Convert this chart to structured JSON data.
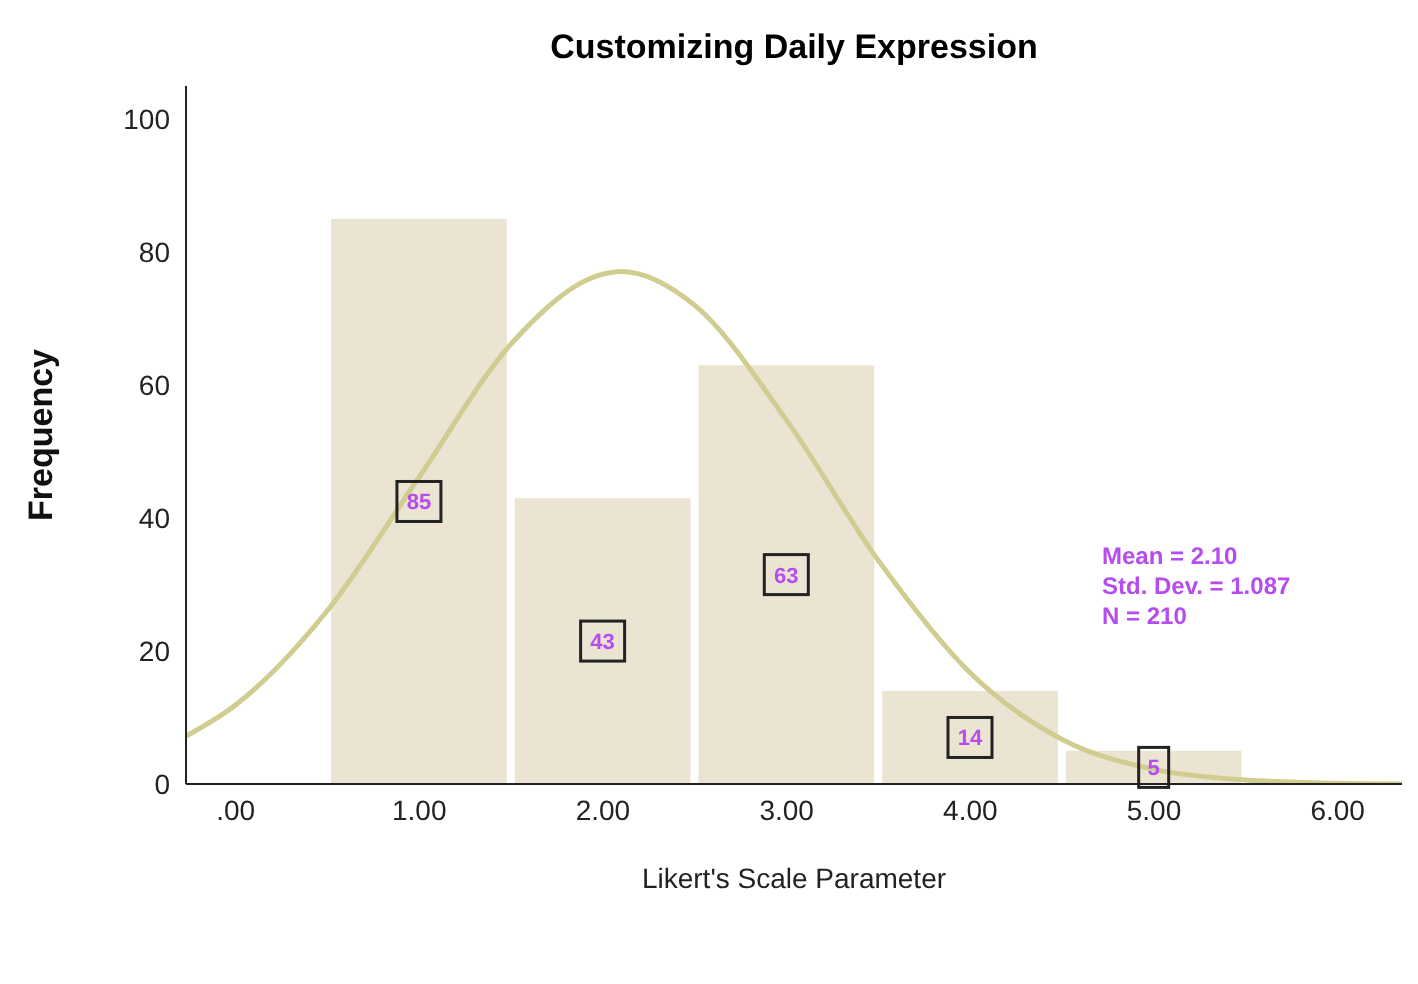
{
  "chart_data": {
    "type": "histogram",
    "title": "Customizing Daily Expression",
    "xlabel": "Likert's Scale Parameter",
    "ylabel": "Frequency",
    "series": [
      {
        "color": "#ebe4d2",
        "bins": [
          0.5,
          1.5,
          2.5,
          3.5,
          4.5,
          5.5
        ],
        "values": [
          85,
          43,
          63,
          14,
          5
        ],
        "value_labels": [
          "85",
          "43",
          "63",
          "14",
          "5"
        ]
      },
      {
        "type": "line",
        "color": "#d1cc8f",
        "x": [
          -0.27,
          0,
          0.5,
          1,
          1.5,
          2,
          2.1,
          2.5,
          3,
          3.5,
          4,
          4.5,
          5,
          5.5,
          6,
          6.35
        ],
        "values": [
          7.2,
          11.9,
          26.1,
          46.2,
          66.2,
          76.7,
          77.1,
          72.0,
          54.7,
          33.6,
          16.7,
          6.7,
          2.2,
          0.6,
          0.1,
          0
        ]
      }
    ],
    "annotations": [
      "Mean = 2.10",
      "Std. Dev. = 1.087",
      "N = 210"
    ],
    "xlim": [
      -0.27,
      6.35
    ],
    "xticks": [
      {
        "value": 0,
        "label": ".00"
      },
      {
        "value": 1,
        "label": "1.00"
      },
      {
        "value": 2,
        "label": "2.00"
      },
      {
        "value": 3,
        "label": "3.00"
      },
      {
        "value": 4,
        "label": "4.00"
      },
      {
        "value": 5,
        "label": "5.00"
      },
      {
        "value": 6,
        "label": "6.00"
      }
    ],
    "ylim": [
      0,
      105
    ],
    "yticks": [
      0,
      20,
      40,
      60,
      80,
      100
    ],
    "grid": false,
    "legend": false
  }
}
